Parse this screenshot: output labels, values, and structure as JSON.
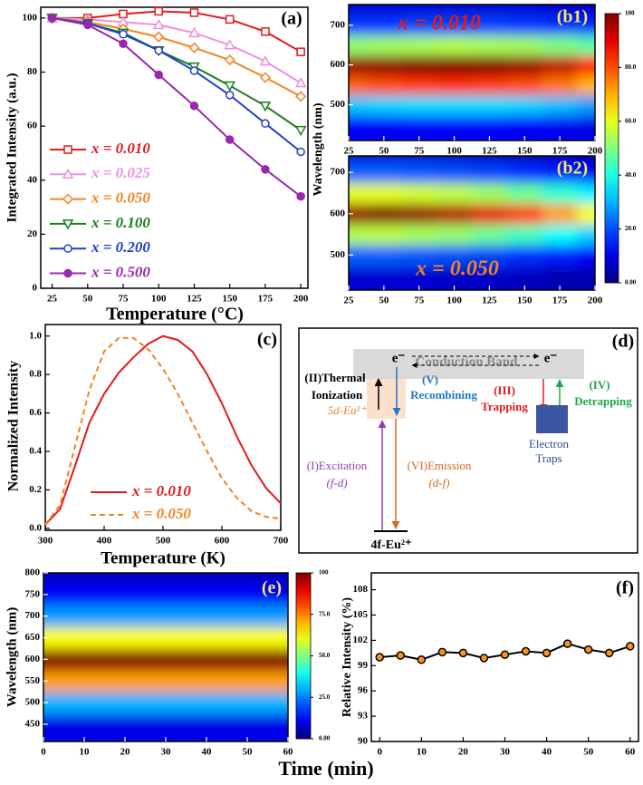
{
  "chart_data": [
    {
      "type": "line",
      "label": "(a)",
      "xlabel": "Temperature (°C)",
      "ylabel": "Integrated Intensity (a.u.)",
      "x": [
        25,
        50,
        75,
        100,
        125,
        150,
        175,
        200
      ],
      "xlim": [
        17,
        205
      ],
      "xticks": [
        25,
        50,
        75,
        100,
        125,
        150,
        175,
        200
      ],
      "ylim": [
        0,
        104
      ],
      "yticks": [
        0,
        20,
        40,
        60,
        80,
        100
      ],
      "legend": "lower left",
      "series": [
        {
          "name": "x = 0.010",
          "color": "#e31a1c",
          "marker": "square",
          "values": [
            100,
            100,
            101.5,
            102.5,
            102,
            99.5,
            95,
            87.5
          ]
        },
        {
          "name": "x = 0.025",
          "color": "#f28ee0",
          "marker": "triangle",
          "values": [
            100,
            99.5,
            98.5,
            97.5,
            94.5,
            90,
            84,
            76
          ]
        },
        {
          "name": "x = 0.050",
          "color": "#f58220",
          "marker": "diamond",
          "values": [
            100,
            98.5,
            96,
            93,
            89,
            84.5,
            78,
            71
          ]
        },
        {
          "name": "x = 0.100",
          "color": "#1a7f1a",
          "marker": "triangle-down",
          "values": [
            100,
            98,
            94.5,
            88,
            82,
            75,
            67.5,
            58.5
          ]
        },
        {
          "name": "x = 0.200",
          "color": "#1f3fd0",
          "marker": "circle",
          "values": [
            100,
            98,
            94,
            88,
            80.5,
            71.5,
            61,
            50.5
          ]
        },
        {
          "name": "x = 0.500",
          "color": "#9b27b0",
          "marker": "circle-filled",
          "values": [
            100,
            97.5,
            90.5,
            79,
            67.5,
            55,
            44,
            34
          ]
        }
      ]
    },
    {
      "type": "heatmap",
      "label": "(b1)",
      "annotation": "x = 0.010",
      "annotation_color": "#e31a1c",
      "ylabel": "Wavelength (nm)",
      "x": [
        25,
        50,
        75,
        100,
        125,
        150,
        175,
        200
      ],
      "y": [
        450,
        500,
        550,
        600,
        650,
        700,
        750
      ],
      "values": [
        [
          12,
          12,
          12,
          12,
          12,
          12,
          11,
          10
        ],
        [
          32,
          33,
          34,
          34,
          34,
          33,
          31,
          28
        ],
        [
          78,
          80,
          82,
          83,
          82,
          80,
          76,
          70
        ],
        [
          98,
          99,
          100,
          100,
          100,
          98,
          94,
          86
        ],
        [
          52,
          53,
          54,
          55,
          54,
          53,
          50,
          46
        ],
        [
          18,
          18,
          19,
          19,
          19,
          18,
          17,
          16
        ],
        [
          8,
          8,
          8,
          8,
          8,
          8,
          7,
          7
        ]
      ],
      "xlim": [
        25,
        200
      ],
      "xticks": [
        25,
        50,
        75,
        100,
        125,
        150,
        175,
        200
      ],
      "ylim": [
        410,
        752
      ],
      "yticks": [
        500,
        600,
        700
      ],
      "colorbar": {
        "lim": [
          0,
          100
        ],
        "ticks": [
          {
            "value": 0,
            "label": "0.00"
          },
          {
            "value": 20,
            "label": "20.0"
          },
          {
            "value": 40,
            "label": "40.0"
          },
          {
            "value": 60,
            "label": "60.0"
          },
          {
            "value": 80,
            "label": "80.0"
          },
          100
        ]
      }
    },
    {
      "type": "heatmap",
      "label": "(b2)",
      "annotation": "x = 0.050",
      "annotation_color": "#f58220",
      "x": [
        25,
        50,
        75,
        100,
        125,
        150,
        175,
        200
      ],
      "y": [
        450,
        500,
        550,
        600,
        650,
        700,
        750
      ],
      "values": [
        [
          8,
          8,
          8,
          7,
          7,
          6,
          5,
          5
        ],
        [
          22,
          22,
          21,
          20,
          19,
          17,
          15,
          13
        ],
        [
          55,
          56,
          54,
          52,
          48,
          44,
          38,
          33
        ],
        [
          98,
          100,
          98,
          95,
          90,
          82,
          72,
          62
        ],
        [
          60,
          60,
          58,
          56,
          53,
          48,
          42,
          36
        ],
        [
          22,
          22,
          21,
          20,
          19,
          17,
          15,
          13
        ],
        [
          7,
          7,
          7,
          6,
          6,
          5,
          5,
          4
        ]
      ],
      "xlim": [
        25,
        200
      ],
      "xticks": [
        25,
        50,
        75,
        100,
        125,
        150,
        175,
        200
      ],
      "ylim": [
        415,
        740
      ],
      "yticks": [
        500,
        600,
        700
      ]
    },
    {
      "type": "line",
      "label": "(c)",
      "xlabel": "Temperature (K)",
      "ylabel": "Normalized Intensity",
      "x": [
        300,
        325,
        350,
        375,
        400,
        425,
        450,
        475,
        500,
        525,
        550,
        575,
        600,
        625,
        650,
        675,
        700
      ],
      "xlim": [
        300,
        700
      ],
      "xticks": [
        300,
        400,
        500,
        600,
        700
      ],
      "ylim": [
        -0.01,
        1.06
      ],
      "yticks": [
        {
          "value": 0,
          "label": "0.0"
        },
        0.2,
        0.4,
        0.6,
        0.8,
        {
          "value": 1,
          "label": "1.0"
        }
      ],
      "legend": "lower center",
      "series": [
        {
          "name": "x = 0.010",
          "color": "#e31a1c",
          "values": [
            0.02,
            0.1,
            0.32,
            0.55,
            0.7,
            0.81,
            0.89,
            0.96,
            1.0,
            0.98,
            0.92,
            0.8,
            0.65,
            0.48,
            0.33,
            0.21,
            0.13
          ]
        },
        {
          "name": "x = 0.050",
          "color": "#f58220",
          "dash": true,
          "values": [
            0.02,
            0.12,
            0.42,
            0.72,
            0.92,
            0.99,
            0.99,
            0.93,
            0.83,
            0.7,
            0.55,
            0.4,
            0.26,
            0.16,
            0.09,
            0.06,
            0.05
          ]
        }
      ]
    },
    {
      "type": "heatmap",
      "label": "(e)",
      "xlabel": "Time (min)",
      "ylabel": "Wavelength (nm)",
      "x": [
        0,
        10,
        20,
        30,
        40,
        50,
        60
      ],
      "y": [
        450,
        500,
        550,
        600,
        650,
        700,
        750,
        800
      ],
      "values": [
        [
          10,
          10,
          10,
          10,
          10,
          10,
          10
        ],
        [
          30,
          30,
          30,
          30,
          30,
          30,
          30
        ],
        [
          72,
          72,
          72,
          72,
          72,
          72,
          72
        ],
        [
          100,
          100,
          100,
          100,
          100,
          100,
          100
        ],
        [
          62,
          62,
          62,
          62,
          62,
          62,
          62
        ],
        [
          28,
          28,
          28,
          28,
          28,
          28,
          28
        ],
        [
          12,
          12,
          12,
          12,
          12,
          12,
          12
        ],
        [
          6,
          6,
          6,
          6,
          6,
          6,
          6
        ]
      ],
      "xlim": [
        0,
        60
      ],
      "xticks": [
        0,
        10,
        20,
        30,
        40,
        50,
        60
      ],
      "ylim": [
        410,
        800
      ],
      "yticks": [
        450,
        500,
        550,
        600,
        650,
        700,
        750,
        800
      ],
      "colorbar": {
        "lim": [
          0,
          100
        ],
        "ticks": [
          {
            "value": 0,
            "label": "0.00"
          },
          {
            "value": 25,
            "label": "25.0"
          },
          {
            "value": 50,
            "label": "50.0"
          },
          {
            "value": 75,
            "label": "75.0"
          },
          100
        ]
      }
    },
    {
      "type": "line",
      "label": "(f)",
      "ylabel": "Relative Intensity (%)",
      "x": [
        0,
        5,
        10,
        15,
        20,
        25,
        30,
        35,
        40,
        45,
        50,
        55,
        60
      ],
      "xlim": [
        -2,
        62
      ],
      "xticks": [
        0,
        10,
        20,
        30,
        40,
        50,
        60
      ],
      "ylim": [
        90,
        110
      ],
      "yticks": [
        90,
        93,
        96,
        99,
        102,
        105,
        108
      ],
      "series": [
        {
          "color": "#f7941d",
          "line_color": "#000000",
          "marker": "circle-filled",
          "values": [
            100,
            100.2,
            99.7,
            100.6,
            100.5,
            99.9,
            100.3,
            100.7,
            100.5,
            101.6,
            100.9,
            100.5,
            101.3
          ]
        }
      ]
    }
  ],
  "diagram": {
    "label": "(d)",
    "band": "Conduction Band",
    "electron_left": "e⁻",
    "electron_right": "e⁻",
    "thermal_1": "(II)Thermal",
    "thermal_2": "Ionization",
    "level_5d": "5d-Eu²⁺",
    "recombining_1": "(V)",
    "recombining_2": "Recombining",
    "trapping_1": "(III)",
    "trapping_2": "Trapping",
    "detrapping_1": "(IV)",
    "detrapping_2": "Detrapping",
    "traps_1": "Electron",
    "traps_2": "Traps",
    "excitation_1": "(I)Excitation",
    "excitation_2": "(f-d)",
    "emission_1": "(VI)Emission",
    "emission_2": "(d-f)",
    "ground": "4f-Eu²⁺"
  }
}
